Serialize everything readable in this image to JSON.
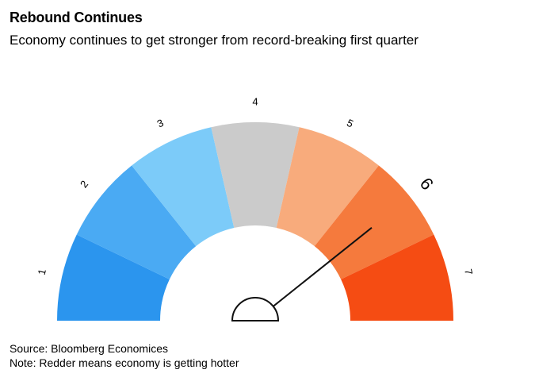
{
  "header": {
    "title": "Rebound Continues",
    "subtitle": "Economy continues to get stronger from record-breaking first quarter"
  },
  "footer": {
    "source": "Source: Bloomberg Economices",
    "note": "Note: Redder means economy is getting hotter"
  },
  "chart_data": {
    "type": "gauge",
    "title": "Rebound Continues",
    "subtitle": "Economy continues to get stronger from record-breaking first quarter",
    "scale": {
      "min": 1,
      "max": 7
    },
    "segments": [
      {
        "label": "1",
        "color": "#2b95ee"
      },
      {
        "label": "2",
        "color": "#4aaaf3"
      },
      {
        "label": "3",
        "color": "#7ccbf9"
      },
      {
        "label": "4",
        "color": "#cbcbcb"
      },
      {
        "label": "5",
        "color": "#f8ab7c"
      },
      {
        "label": "6",
        "color": "#f57a3d"
      },
      {
        "label": "7",
        "color": "#f54c13"
      }
    ],
    "highlighted_label": "6",
    "needle_value": 6
  }
}
